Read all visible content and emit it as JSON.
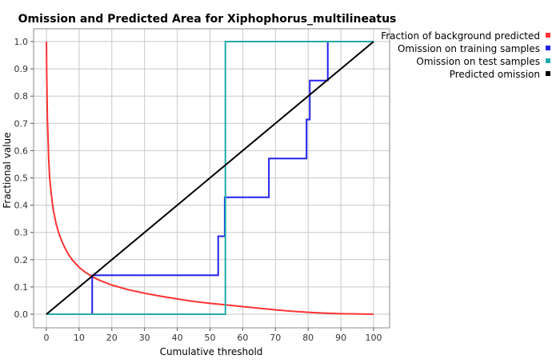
{
  "chart_data": {
    "type": "line",
    "title": "Omission and Predicted Area for Xiphophorus_multilineatus",
    "xlabel": "Cumulative threshold",
    "ylabel": "Fractional value",
    "xlim": [
      0,
      100
    ],
    "ylim": [
      0,
      1.0
    ],
    "xticks": [
      0,
      10,
      20,
      30,
      40,
      50,
      60,
      70,
      80,
      90,
      100
    ],
    "yticks": [
      0.0,
      0.1,
      0.2,
      0.3,
      0.4,
      0.5,
      0.6,
      0.7,
      0.8,
      0.9,
      1.0
    ],
    "xtick_labels": [
      "0",
      "10",
      "20",
      "30",
      "40",
      "50",
      "60",
      "70",
      "80",
      "90",
      "100"
    ],
    "ytick_labels": [
      "0.0",
      "0.1",
      "0.2",
      "0.3",
      "0.4",
      "0.5",
      "0.6",
      "0.7",
      "0.8",
      "0.9",
      "1.0"
    ],
    "grid": true,
    "legend_position": "top-right",
    "series": [
      {
        "name": "Fraction of background predicted",
        "color": "#ff3333",
        "x": [
          0,
          0.1,
          0.2,
          0.3,
          0.5,
          0.7,
          1,
          1.5,
          2,
          3,
          4,
          5,
          6,
          7,
          8,
          10,
          12,
          14,
          16,
          18,
          20,
          25,
          30,
          35,
          40,
          45,
          50,
          55,
          60,
          65,
          70,
          75,
          80,
          85,
          90,
          95,
          100
        ],
        "values": [
          1.0,
          0.88,
          0.8,
          0.72,
          0.65,
          0.57,
          0.5,
          0.44,
          0.39,
          0.33,
          0.29,
          0.26,
          0.235,
          0.215,
          0.198,
          0.172,
          0.153,
          0.138,
          0.126,
          0.116,
          0.107,
          0.09,
          0.077,
          0.066,
          0.056,
          0.047,
          0.04,
          0.034,
          0.028,
          0.022,
          0.016,
          0.011,
          0.007,
          0.004,
          0.002,
          0.001,
          0.0
        ]
      },
      {
        "name": "Omission on training samples",
        "color": "#2222ee",
        "x": [
          0,
          14,
          14,
          52.5,
          52.5,
          54.5,
          54.5,
          68,
          68,
          79.5,
          79.5,
          80.5,
          80.5,
          86,
          86,
          100
        ],
        "values": [
          0,
          0,
          0.143,
          0.143,
          0.286,
          0.286,
          0.429,
          0.429,
          0.571,
          0.571,
          0.714,
          0.714,
          0.857,
          0.857,
          1.0,
          1.0
        ]
      },
      {
        "name": "Omission on test samples",
        "color": "#22aaaa",
        "x": [
          0,
          54.7,
          54.7,
          100
        ],
        "values": [
          0,
          0,
          1.0,
          1.0
        ]
      },
      {
        "name": "Predicted omission",
        "color": "#000000",
        "x": [
          0,
          100
        ],
        "values": [
          0,
          1.0
        ]
      }
    ]
  }
}
